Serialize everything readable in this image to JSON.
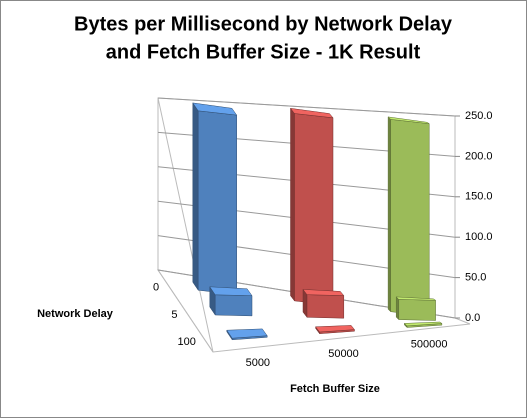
{
  "chart_data": {
    "type": "bar3d",
    "title": [
      "Bytes per Millisecond by Network Delay",
      "and Fetch Buffer Size - 1K Result"
    ],
    "x_label": "Fetch Buffer Size",
    "depth_label": "Network Delay",
    "depth_categories": [
      "0",
      "5",
      "100"
    ],
    "series": [
      {
        "name": "5000",
        "color": "#4f81bd",
        "values": [
          222,
          25,
          2
        ]
      },
      {
        "name": "50000",
        "color": "#c0504d",
        "values": [
          232,
          28,
          2
        ]
      },
      {
        "name": "500000",
        "color": "#9bbb59",
        "values": [
          238,
          25,
          2
        ]
      }
    ],
    "ylim": [
      0,
      250
    ],
    "yticks": [
      {
        "value": 0,
        "label": "0.0"
      },
      {
        "value": 50,
        "label": "50.0"
      },
      {
        "value": 100,
        "label": "100.0"
      },
      {
        "value": 150,
        "label": "150.0"
      },
      {
        "value": 200,
        "label": "200.0"
      },
      {
        "value": 250,
        "label": "250.0"
      }
    ],
    "grid": true
  }
}
